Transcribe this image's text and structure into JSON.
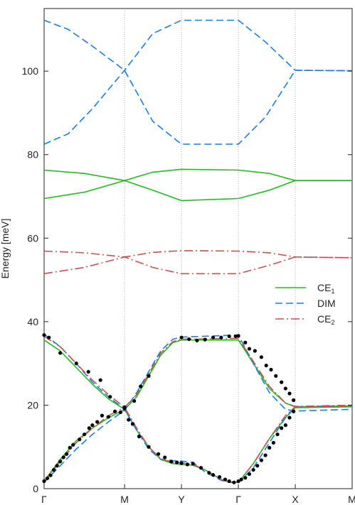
{
  "chart_data": {
    "type": "line",
    "title": "",
    "xlabel": "",
    "ylabel": "Energy [meV]",
    "ylim": [
      0,
      115
    ],
    "yticks": [
      0,
      20,
      40,
      60,
      80,
      100
    ],
    "x_ticks": [
      {
        "label": "Γ",
        "x": 0
      },
      {
        "label": "M",
        "x": 1
      },
      {
        "label": "Y",
        "x": 1.707
      },
      {
        "label": "Γ",
        "x": 2.414
      },
      {
        "label": "X",
        "x": 3.121
      },
      {
        "label": "M",
        "x": 3.828
      }
    ],
    "grid": "vertical dotted lines at high-symmetry points",
    "legend": {
      "position": "right",
      "entries": [
        {
          "main": "CE",
          "sub": "1",
          "color": "#22bb22",
          "style": "solid"
        },
        {
          "main": "DIM",
          "sub": "",
          "color": "#1a7de0",
          "style": "dashed"
        },
        {
          "main": "CE",
          "sub": "2",
          "color": "#c85050",
          "style": "dashdot"
        }
      ]
    },
    "series": [
      {
        "key": "ce1",
        "color": "#22bb22",
        "style": "solid",
        "bands": [
          [
            [
              0,
              1.8
            ],
            [
              0.2,
              7
            ],
            [
              0.4,
              11.5
            ],
            [
              0.6,
              14.5
            ],
            [
              0.8,
              17
            ],
            [
              1,
              19
            ],
            [
              1.15,
              22
            ],
            [
              1.3,
              27
            ],
            [
              1.45,
              32
            ],
            [
              1.6,
              35
            ],
            [
              1.707,
              35.6
            ],
            [
              2.414,
              35.6
            ],
            [
              2.6,
              30
            ],
            [
              2.8,
              24
            ],
            [
              3.0,
              20.5
            ],
            [
              3.121,
              19.6
            ],
            [
              3.828,
              19.8
            ]
          ],
          [
            [
              0,
              35.6
            ],
            [
              0.2,
              33
            ],
            [
              0.4,
              29
            ],
            [
              0.6,
              25
            ],
            [
              0.8,
              21.5
            ],
            [
              1,
              19
            ],
            [
              1.15,
              14
            ],
            [
              1.3,
              10
            ],
            [
              1.45,
              7
            ],
            [
              1.6,
              6
            ],
            [
              1.707,
              5.8
            ],
            [
              1.85,
              5.6
            ],
            [
              2.0,
              4.5
            ],
            [
              2.2,
              2.2
            ],
            [
              2.3,
              1.6
            ],
            [
              2.414,
              1.5
            ],
            [
              2.6,
              6
            ],
            [
              2.8,
              12
            ],
            [
              3.0,
              17
            ],
            [
              3.121,
              19.4
            ],
            [
              3.828,
              19.6
            ]
          ],
          [
            [
              0,
              69.5
            ],
            [
              0.5,
              71
            ],
            [
              1,
              73.8
            ],
            [
              1.35,
              71.5
            ],
            [
              1.707,
              69
            ],
            [
              2.414,
              69.5
            ],
            [
              2.8,
              71.5
            ],
            [
              3.121,
              73.8
            ],
            [
              3.828,
              73.8
            ]
          ],
          [
            [
              0,
              76.3
            ],
            [
              0.5,
              75.5
            ],
            [
              1,
              73.8
            ],
            [
              1.35,
              75.8
            ],
            [
              1.707,
              76.5
            ],
            [
              2.414,
              76.3
            ],
            [
              2.8,
              75.5
            ],
            [
              3.121,
              73.8
            ],
            [
              3.828,
              73.8
            ]
          ]
        ]
      },
      {
        "key": "dim",
        "color": "#1a7de0",
        "style": "dashed",
        "bands": [
          [
            [
              0,
              1.5
            ],
            [
              0.2,
              5.5
            ],
            [
              0.4,
              9.5
            ],
            [
              0.6,
              13
            ],
            [
              0.8,
              16
            ],
            [
              1,
              18.8
            ],
            [
              1.15,
              23
            ],
            [
              1.3,
              28
            ],
            [
              1.45,
              33
            ],
            [
              1.6,
              35.8
            ],
            [
              1.707,
              36.3
            ],
            [
              2.414,
              36.8
            ],
            [
              2.6,
              30
            ],
            [
              2.8,
              23
            ],
            [
              3.0,
              19
            ],
            [
              3.121,
              18.6
            ],
            [
              3.828,
              19
            ]
          ],
          [
            [
              0,
              37
            ],
            [
              0.2,
              34
            ],
            [
              0.4,
              30
            ],
            [
              0.6,
              25.5
            ],
            [
              0.8,
              22
            ],
            [
              1,
              19
            ],
            [
              1.15,
              14
            ],
            [
              1.3,
              9.5
            ],
            [
              1.45,
              7
            ],
            [
              1.6,
              6.7
            ],
            [
              1.707,
              6.6
            ],
            [
              1.85,
              6.3
            ],
            [
              2.0,
              4
            ],
            [
              2.2,
              2
            ],
            [
              2.3,
              1.5
            ],
            [
              2.414,
              1.4
            ],
            [
              2.6,
              5
            ],
            [
              2.8,
              11
            ],
            [
              3.0,
              17
            ],
            [
              3.121,
              19.6
            ],
            [
              3.828,
              19.9
            ]
          ],
          [
            [
              0,
              82.5
            ],
            [
              0.3,
              85
            ],
            [
              0.6,
              91
            ],
            [
              1,
              100.2
            ],
            [
              1.35,
              109
            ],
            [
              1.707,
              112.2
            ],
            [
              2.414,
              112.2
            ],
            [
              2.75,
              107
            ],
            [
              3.121,
              100.2
            ],
            [
              3.828,
              100.1
            ]
          ],
          [
            [
              0,
              112.2
            ],
            [
              0.3,
              110
            ],
            [
              0.6,
              106
            ],
            [
              1,
              100.2
            ],
            [
              1.35,
              88
            ],
            [
              1.707,
              82.5
            ],
            [
              2.414,
              82.5
            ],
            [
              2.75,
              89
            ],
            [
              3.121,
              100.2
            ],
            [
              3.828,
              100.1
            ]
          ]
        ]
      },
      {
        "key": "ce2",
        "color": "#c85050",
        "style": "dashdot",
        "bands": [
          [
            [
              0,
              1.7
            ],
            [
              0.2,
              6.5
            ],
            [
              0.4,
              11
            ],
            [
              0.6,
              14.5
            ],
            [
              0.8,
              17.5
            ],
            [
              1,
              19.5
            ],
            [
              1.15,
              22.5
            ],
            [
              1.3,
              27.5
            ],
            [
              1.45,
              32.5
            ],
            [
              1.6,
              35.2
            ],
            [
              1.707,
              35.8
            ],
            [
              2.414,
              36
            ],
            [
              2.6,
              30.5
            ],
            [
              2.8,
              24.5
            ],
            [
              3.0,
              20.5
            ],
            [
              3.121,
              19.7
            ],
            [
              3.828,
              20
            ]
          ],
          [
            [
              0,
              36.5
            ],
            [
              0.2,
              34
            ],
            [
              0.4,
              30
            ],
            [
              0.6,
              26
            ],
            [
              0.8,
              22.5
            ],
            [
              1,
              19.5
            ],
            [
              1.15,
              14.5
            ],
            [
              1.3,
              10
            ],
            [
              1.45,
              7.2
            ],
            [
              1.6,
              6.3
            ],
            [
              1.707,
              6.2
            ],
            [
              1.85,
              5.8
            ],
            [
              2.0,
              4.5
            ],
            [
              2.2,
              2.2
            ],
            [
              2.3,
              1.6
            ],
            [
              2.414,
              1.5
            ],
            [
              2.6,
              6
            ],
            [
              2.8,
              12
            ],
            [
              3.0,
              17.5
            ],
            [
              3.121,
              19.6
            ],
            [
              3.828,
              19.8
            ]
          ],
          [
            [
              0,
              51.5
            ],
            [
              0.5,
              53
            ],
            [
              1,
              55.5
            ],
            [
              1.35,
              53
            ],
            [
              1.707,
              51.5
            ],
            [
              2.414,
              51.5
            ],
            [
              2.8,
              53.5
            ],
            [
              3.121,
              55.5
            ],
            [
              3.828,
              55.3
            ]
          ],
          [
            [
              0,
              56.9
            ],
            [
              0.5,
              56.5
            ],
            [
              1,
              55.5
            ],
            [
              1.35,
              56.6
            ],
            [
              1.707,
              57
            ],
            [
              2.414,
              56.9
            ],
            [
              2.8,
              56.5
            ],
            [
              3.121,
              55.5
            ],
            [
              3.828,
              55.3
            ]
          ]
        ]
      }
    ],
    "scatter": {
      "color": "#000000",
      "points": [
        [
          0,
          1.8
        ],
        [
          0.04,
          2.5
        ],
        [
          0.08,
          3.2
        ],
        [
          0.12,
          4.5
        ],
        [
          0.16,
          5.5
        ],
        [
          0.2,
          6.5
        ],
        [
          0.24,
          7.5
        ],
        [
          0.28,
          8.3
        ],
        [
          0.32,
          9.8
        ],
        [
          0.36,
          10.5
        ],
        [
          0.44,
          11.8
        ],
        [
          0.5,
          13
        ],
        [
          0.56,
          14.5
        ],
        [
          0.6,
          15.2
        ],
        [
          0.66,
          16
        ],
        [
          0.72,
          17.5
        ],
        [
          0.8,
          17.2
        ],
        [
          0.88,
          18.5
        ],
        [
          0.95,
          18.3
        ],
        [
          1.0,
          19.2
        ],
        [
          1.05,
          16.5
        ],
        [
          1.12,
          21
        ],
        [
          1.2,
          24.5
        ],
        [
          1.3,
          27
        ],
        [
          0,
          36.8
        ],
        [
          0.06,
          36.2
        ],
        [
          0.2,
          32.5
        ],
        [
          0.4,
          30
        ],
        [
          0.55,
          28
        ],
        [
          0.7,
          26
        ],
        [
          0.82,
          22
        ],
        [
          1.0,
          19.5
        ],
        [
          1.1,
          15.5
        ],
        [
          1.18,
          12.5
        ],
        [
          1.3,
          10
        ],
        [
          1.42,
          8.3
        ],
        [
          1.5,
          7.5
        ],
        [
          1.58,
          6.5
        ],
        [
          1.65,
          6.3
        ],
        [
          1.707,
          6.1
        ],
        [
          1.78,
          5.8
        ],
        [
          1.85,
          6
        ],
        [
          1.95,
          5
        ],
        [
          2.05,
          3.8
        ],
        [
          2.1,
          3.3
        ],
        [
          2.18,
          2.8
        ],
        [
          2.25,
          2.2
        ],
        [
          2.3,
          1.8
        ],
        [
          2.36,
          1.5
        ],
        [
          2.414,
          1.8
        ],
        [
          2.45,
          2.2
        ],
        [
          2.5,
          2.6
        ],
        [
          2.55,
          3.5
        ],
        [
          2.6,
          4.5
        ],
        [
          2.65,
          5.5
        ],
        [
          2.7,
          6.8
        ],
        [
          2.75,
          8
        ],
        [
          2.8,
          9.8
        ],
        [
          2.85,
          11
        ],
        [
          2.9,
          13
        ],
        [
          2.95,
          14.5
        ],
        [
          3.0,
          15.2
        ],
        [
          3.05,
          17
        ],
        [
          3.1,
          18.5
        ],
        [
          1.707,
          36.2
        ],
        [
          1.8,
          35.8
        ],
        [
          1.9,
          35.5
        ],
        [
          2.0,
          35.7
        ],
        [
          2.1,
          36.2
        ],
        [
          2.2,
          36.2
        ],
        [
          2.3,
          36.5
        ],
        [
          2.38,
          36.5
        ],
        [
          2.414,
          36.6
        ],
        [
          2.5,
          35
        ],
        [
          2.55,
          33.5
        ],
        [
          2.62,
          33
        ],
        [
          2.7,
          31.5
        ],
        [
          2.76,
          29.5
        ],
        [
          2.82,
          28.5
        ],
        [
          2.88,
          27
        ],
        [
          2.95,
          25.5
        ],
        [
          3.0,
          24
        ],
        [
          3.05,
          22.8
        ],
        [
          3.1,
          21.2
        ]
      ]
    }
  }
}
